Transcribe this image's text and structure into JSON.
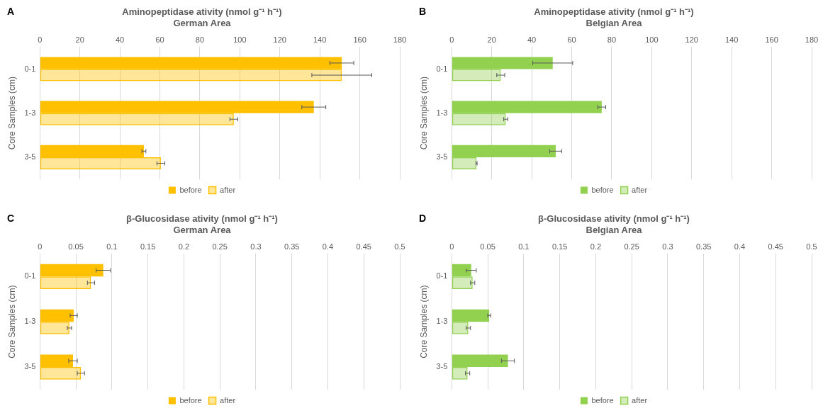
{
  "chart_data": [
    {
      "type": "bar",
      "orientation": "horizontal",
      "title": "Aminopeptidase ativity (nmol g⁻¹ h⁻¹)",
      "subtitle": "German Area",
      "ylabel": "Core Samples (cm)",
      "annotations": [
        "A"
      ],
      "categories": [
        "0-1",
        "1-3",
        "3-5"
      ],
      "xlim": [
        0,
        180
      ],
      "xticks": [
        0,
        20,
        40,
        60,
        80,
        100,
        120,
        140,
        160,
        180
      ],
      "grid": "x",
      "legend": "bottom",
      "series": [
        {
          "name": "before",
          "color": "#ffc000",
          "values": [
            151,
            137,
            52
          ],
          "errors": [
            6,
            6,
            1
          ]
        },
        {
          "name": "after",
          "color": "#ffc000",
          "values": [
            151,
            97,
            60.5
          ],
          "errors": [
            15,
            2,
            2
          ]
        }
      ]
    },
    {
      "type": "bar",
      "orientation": "horizontal",
      "title": "Aminopeptidase ativity (nmol g⁻¹ h⁻¹)",
      "subtitle": "Belgian Area",
      "ylabel": "Core Samples (cm)",
      "annotations": [
        "B"
      ],
      "categories": [
        "0-1",
        "1-3",
        "3-5"
      ],
      "xlim": [
        0,
        180
      ],
      "xticks": [
        0,
        20,
        40,
        60,
        80,
        100,
        120,
        140,
        160,
        180
      ],
      "grid": "x",
      "legend": "bottom",
      "series": [
        {
          "name": "before",
          "color": "#92d050",
          "values": [
            50.5,
            75,
            52
          ],
          "errors": [
            10,
            2,
            3
          ]
        },
        {
          "name": "after",
          "color": "#92d050",
          "values": [
            24.5,
            27,
            12.4
          ],
          "errors": [
            2,
            1,
            0.3
          ]
        }
      ]
    },
    {
      "type": "bar",
      "orientation": "horizontal",
      "title": "β-Glucosidase ativity (nmol g⁻¹ h⁻¹)",
      "subtitle": "German Area",
      "ylabel": "Core Samples (cm)",
      "annotations": [
        "C"
      ],
      "categories": [
        "0-1",
        "1-3",
        "3-5"
      ],
      "xlim": [
        0,
        0.5
      ],
      "xticks": [
        0,
        0.05,
        0.1,
        0.15,
        0.2,
        0.25,
        0.3,
        0.35,
        0.4,
        0.45,
        0.5
      ],
      "grid": "x",
      "legend": "bottom",
      "series": [
        {
          "name": "before",
          "color": "#ffc000",
          "values": [
            0.088,
            0.047,
            0.046
          ],
          "errors": [
            0.01,
            0.005,
            0.006
          ]
        },
        {
          "name": "after",
          "color": "#ffc000",
          "values": [
            0.071,
            0.041,
            0.057
          ],
          "errors": [
            0.005,
            0.003,
            0.005
          ]
        }
      ]
    },
    {
      "type": "bar",
      "orientation": "horizontal",
      "title": "β-Glucosidase ativity (nmol g⁻¹ h⁻¹)",
      "subtitle": "Belgian Area",
      "ylabel": "Core Samples (cm)",
      "annotations": [
        "D"
      ],
      "categories": [
        "0-1",
        "1-3",
        "3-5"
      ],
      "xlim": [
        0,
        0.5
      ],
      "xticks": [
        0,
        0.05,
        0.1,
        0.15,
        0.2,
        0.25,
        0.3,
        0.35,
        0.4,
        0.45,
        0.5
      ],
      "grid": "x",
      "legend": "bottom",
      "series": [
        {
          "name": "before",
          "color": "#92d050",
          "values": [
            0.027,
            0.052,
            0.078
          ],
          "errors": [
            0.007,
            0.002,
            0.009
          ]
        },
        {
          "name": "after",
          "color": "#92d050",
          "values": [
            0.029,
            0.023,
            0.022
          ],
          "errors": [
            0.003,
            0.003,
            0.003
          ]
        }
      ]
    }
  ]
}
